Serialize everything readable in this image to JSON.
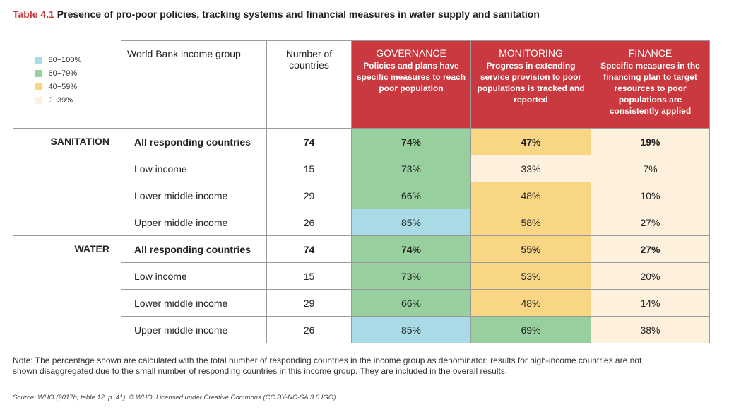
{
  "title": {
    "label": "Table 4.1",
    "text": "Presence of pro-poor policies, tracking systems and financial measures in water supply and sanitation"
  },
  "legend": [
    {
      "label": "80−100%",
      "color": "#a9dbe6"
    },
    {
      "label": "60−79%",
      "color": "#98cf9e"
    },
    {
      "label": "40−59%",
      "color": "#f8d683"
    },
    {
      "label": "0−39%",
      "color": "#fdf0dd"
    }
  ],
  "headers": {
    "income_group": "World Bank income group",
    "num_countries": "Number of countries",
    "governance": {
      "title": "GOVERNANCE",
      "sub": "Policies and plans have specific measures to reach poor population"
    },
    "monitoring": {
      "title": "MONITORING",
      "sub": "Progress in extending service provision to poor populations is tracked and reported"
    },
    "finance": {
      "title": "FINANCE",
      "sub": "Specific measures in the financing plan to target resources to poor populations are consistently applied"
    }
  },
  "header_color": "#c9393f",
  "sections": [
    {
      "name": "SANITATION",
      "rows": [
        {
          "group": "All responding countries",
          "count": "74",
          "gov": "74%",
          "mon": "47%",
          "fin": "19%",
          "gov_band": 2,
          "mon_band": 3,
          "fin_band": 4,
          "bold": true
        },
        {
          "group": "Low income",
          "count": "15",
          "gov": "73%",
          "mon": "33%",
          "fin": "7%",
          "gov_band": 2,
          "mon_band": 4,
          "fin_band": 4,
          "bold": false
        },
        {
          "group": "Lower middle income",
          "count": "29",
          "gov": "66%",
          "mon": "48%",
          "fin": "10%",
          "gov_band": 2,
          "mon_band": 3,
          "fin_band": 4,
          "bold": false
        },
        {
          "group": "Upper middle income",
          "count": "26",
          "gov": "85%",
          "mon": "58%",
          "fin": "27%",
          "gov_band": 1,
          "mon_band": 3,
          "fin_band": 4,
          "bold": false
        }
      ]
    },
    {
      "name": "WATER",
      "rows": [
        {
          "group": "All responding countries",
          "count": "74",
          "gov": "74%",
          "mon": "55%",
          "fin": "27%",
          "gov_band": 2,
          "mon_band": 3,
          "fin_band": 4,
          "bold": true
        },
        {
          "group": "Low income",
          "count": "15",
          "gov": "73%",
          "mon": "53%",
          "fin": "20%",
          "gov_band": 2,
          "mon_band": 3,
          "fin_band": 4,
          "bold": false
        },
        {
          "group": "Lower middle income",
          "count": "29",
          "gov": "66%",
          "mon": "48%",
          "fin": "14%",
          "gov_band": 2,
          "mon_band": 3,
          "fin_band": 4,
          "bold": false
        },
        {
          "group": "Upper middle income",
          "count": "26",
          "gov": "85%",
          "mon": "69%",
          "fin": "38%",
          "gov_band": 1,
          "mon_band": 2,
          "fin_band": 4,
          "bold": false
        }
      ]
    }
  ],
  "note": "Note: The percentage shown are calculated with the total number of responding countries in the income group as denominator; results for high-income countries are not shown disaggregated due to the small number of responding countries in this income group. They are included in the overall results.",
  "source": "Source: WHO (2017b, table 12, p. 41). © WHO. Licensed under Creative Commons (CC BY-NC-SA 3.0 IGO)."
}
